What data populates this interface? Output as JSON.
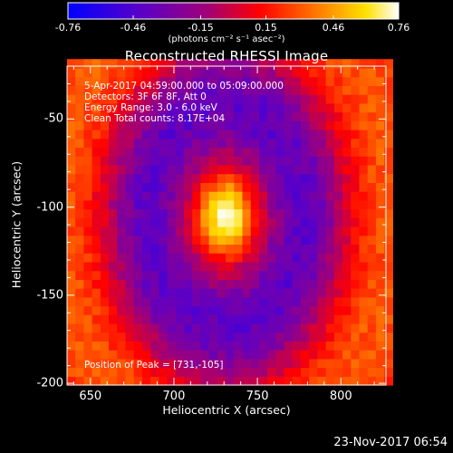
{
  "colorbar": {
    "tick_labels": [
      "-0.76",
      "-0.46",
      "-0.15",
      "0.15",
      "0.46",
      "0.76"
    ],
    "tick_values": [
      -0.76,
      -0.46,
      -0.15,
      0.15,
      0.46,
      0.76
    ],
    "range": [
      -0.76,
      0.76
    ],
    "units": "(photons cm⁻² s⁻¹ asec⁻²)",
    "colormap": [
      "#0000ff",
      "#5a00c8",
      "#a00078",
      "#ff0000",
      "#ff7800",
      "#ffe000",
      "#ffffff"
    ]
  },
  "chart_data": {
    "type": "heatmap",
    "title": "Reconstructed RHESSI Image",
    "xlabel": "Heliocentric X (arcsec)",
    "ylabel": "Heliocentric Y (arcsec)",
    "xlim": [
      636,
      827
    ],
    "ylim": [
      -201,
      -20
    ],
    "x_ticks": [
      650,
      700,
      750,
      800
    ],
    "y_ticks": [
      -200,
      -150,
      -100,
      -50
    ],
    "peak": [
      731,
      -105
    ],
    "annotations": [
      "5-Apr-2017 04:59:00.000 to 05:09:00.000",
      "Detectors: 3F 6F 8F, Att 0",
      "Energy Range: 3.0 - 6.0 keV",
      "Clean     Total counts: 8.17E+04",
      "Position of Peak = [731,-105]"
    ]
  },
  "timestamp": "23-Nov-2017 06:54"
}
